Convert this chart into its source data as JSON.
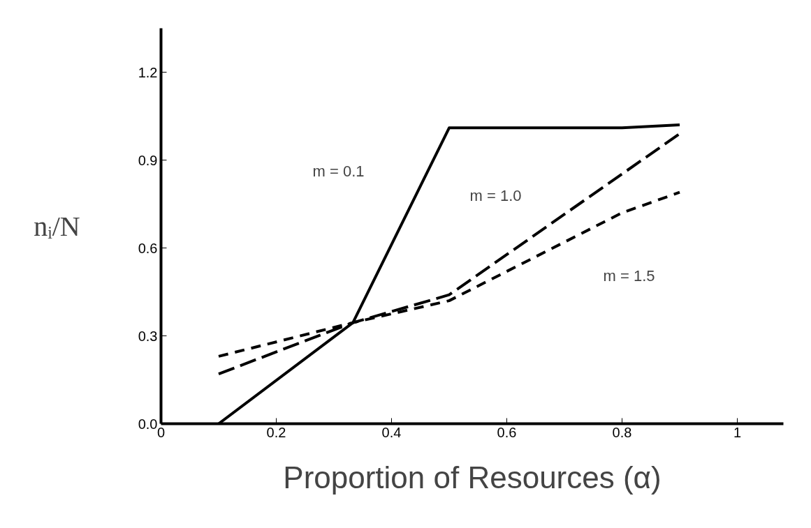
{
  "chart_data": {
    "type": "line",
    "xlabel": "Proportion of Resources (α)",
    "ylabel": "nᵢ/N",
    "xlim": [
      0,
      1.08
    ],
    "ylim": [
      0,
      1.35
    ],
    "xticks": [
      0,
      0.2,
      0.4,
      0.6,
      0.8,
      1
    ],
    "yticks": [
      {
        "value": 0,
        "label": "0.0"
      },
      {
        "value": 0.3,
        "label": "0.3"
      },
      {
        "value": 0.6,
        "label": "0.6"
      },
      {
        "value": 0.9,
        "label": "0.9"
      },
      {
        "value": 1.2,
        "label": "1.2"
      }
    ],
    "grid": false,
    "marker": "none",
    "series": [
      {
        "color": "#000000",
        "line_style": "solid",
        "x": [
          0.1,
          0.333,
          0.5,
          0.8,
          0.9
        ],
        "values": [
          0.0,
          0.345,
          1.01,
          1.01,
          1.02
        ]
      },
      {
        "color": "#000000",
        "line_style": "dashed",
        "x": [
          0.1,
          0.333,
          0.5,
          0.9
        ],
        "values": [
          0.17,
          0.345,
          0.44,
          0.99
        ]
      },
      {
        "color": "#000000",
        "line_style": "dotted",
        "x": [
          0.1,
          0.333,
          0.5,
          0.8,
          0.9
        ],
        "values": [
          0.23,
          0.345,
          0.42,
          0.72,
          0.79
        ]
      }
    ],
    "annotations": [
      "m = 0.1",
      "m = 1.0",
      "m = 1.5"
    ]
  }
}
